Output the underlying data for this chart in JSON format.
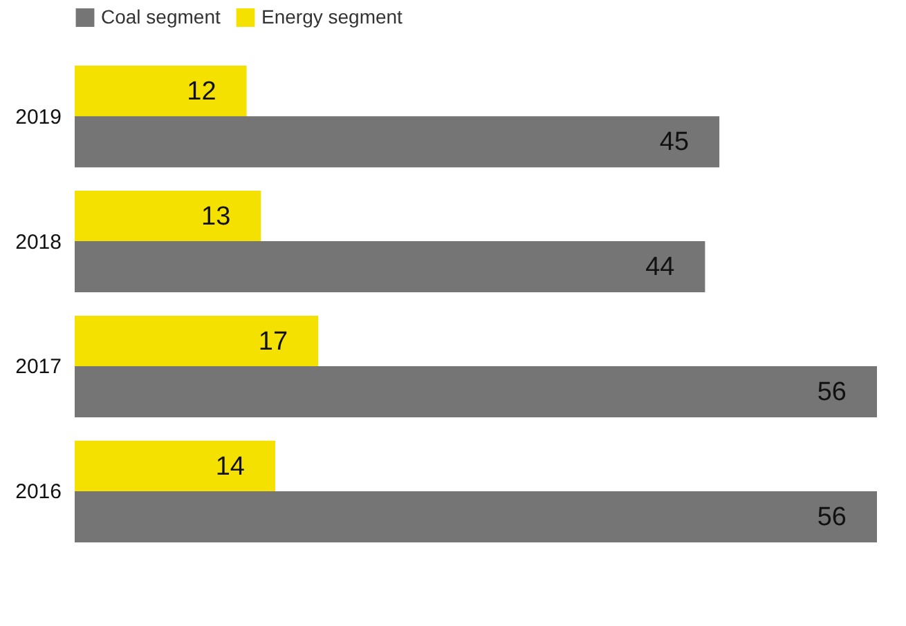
{
  "chart_data": {
    "type": "bar",
    "orientation": "horizontal",
    "categories": [
      "2019",
      "2018",
      "2017",
      "2016"
    ],
    "series": [
      {
        "name": "Energy segment",
        "color": "#f5e100",
        "values": [
          12,
          13,
          17,
          14
        ]
      },
      {
        "name": "Coal segment",
        "color": "#757575",
        "values": [
          45,
          44,
          56,
          56
        ]
      }
    ],
    "data_labels": true,
    "legend": "top left",
    "grid": false
  }
}
